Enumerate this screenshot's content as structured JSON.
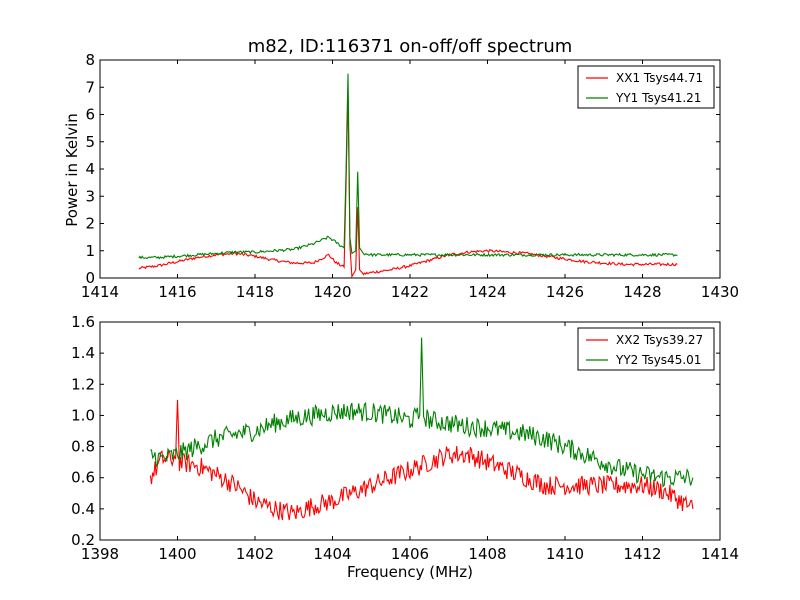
{
  "chart_data": [
    {
      "type": "line",
      "title": "m82, ID:116371 on-off/off spectrum",
      "xlabel": "",
      "ylabel": "Power in Kelvin",
      "xlim": [
        1414,
        1430
      ],
      "ylim": [
        0,
        8
      ],
      "xticks": [
        1414,
        1416,
        1418,
        1420,
        1422,
        1424,
        1426,
        1428,
        1430
      ],
      "yticks": [
        0,
        1,
        2,
        3,
        4,
        5,
        6,
        7,
        8
      ],
      "legend_position": "top-right",
      "series": [
        {
          "name": "XX1 Tsys44.71",
          "color": "#ff0000",
          "x": [
            1415.0,
            1415.5,
            1416.0,
            1416.5,
            1417.0,
            1417.5,
            1418.0,
            1418.5,
            1419.0,
            1419.5,
            1419.9,
            1420.1,
            1420.3,
            1420.35,
            1420.4,
            1420.45,
            1420.5,
            1420.6,
            1420.65,
            1420.7,
            1420.8,
            1421.0,
            1421.5,
            1422.0,
            1422.5,
            1423.0,
            1423.5,
            1424.0,
            1424.5,
            1425.0,
            1425.5,
            1426.0,
            1426.5,
            1427.0,
            1427.5,
            1428.0,
            1428.5,
            1428.9
          ],
          "y": [
            0.35,
            0.45,
            0.6,
            0.75,
            0.85,
            0.9,
            0.8,
            0.65,
            0.55,
            0.55,
            0.85,
            0.55,
            0.4,
            3.5,
            6.8,
            1.2,
            0.05,
            0.3,
            2.6,
            0.3,
            0.15,
            0.2,
            0.3,
            0.45,
            0.65,
            0.85,
            0.95,
            1.0,
            0.95,
            0.9,
            0.8,
            0.7,
            0.6,
            0.55,
            0.5,
            0.5,
            0.5,
            0.5
          ]
        },
        {
          "name": "YY1 Tsys41.21",
          "color": "#008000",
          "x": [
            1415.0,
            1415.5,
            1416.0,
            1416.5,
            1417.0,
            1417.5,
            1418.0,
            1418.5,
            1419.0,
            1419.5,
            1419.9,
            1420.1,
            1420.3,
            1420.35,
            1420.4,
            1420.45,
            1420.5,
            1420.6,
            1420.65,
            1420.7,
            1420.8,
            1421.0,
            1421.5,
            1422.0,
            1422.5,
            1423.0,
            1423.5,
            1424.0,
            1424.5,
            1425.0,
            1425.5,
            1426.0,
            1426.5,
            1427.0,
            1427.5,
            1428.0,
            1428.5,
            1428.9
          ],
          "y": [
            0.75,
            0.75,
            0.8,
            0.85,
            0.9,
            0.95,
            0.95,
            1.0,
            1.05,
            1.25,
            1.5,
            1.3,
            1.1,
            4.0,
            7.5,
            1.5,
            0.9,
            1.0,
            3.9,
            1.1,
            0.9,
            0.85,
            0.85,
            0.85,
            0.85,
            0.85,
            0.85,
            0.85,
            0.85,
            0.85,
            0.85,
            0.85,
            0.85,
            0.85,
            0.85,
            0.85,
            0.85,
            0.85
          ]
        }
      ]
    },
    {
      "type": "line",
      "title": "",
      "xlabel": "Frequency (MHz)",
      "ylabel": "",
      "xlim": [
        1398,
        1414
      ],
      "ylim": [
        0.2,
        1.6
      ],
      "xticks": [
        1398,
        1400,
        1402,
        1404,
        1406,
        1408,
        1410,
        1412,
        1414
      ],
      "yticks": [
        0.2,
        0.4,
        0.6,
        0.8,
        1.0,
        1.2,
        1.4,
        1.6
      ],
      "ytick_labels": [
        "0.2",
        "0.4",
        "0.6",
        "0.8",
        "1.0",
        "1.2",
        "1.4",
        "1.6"
      ],
      "legend_position": "top-right",
      "series": [
        {
          "name": "XX2 Tsys39.27",
          "color": "#ff0000",
          "x": [
            1399.3,
            1399.6,
            1399.95,
            1400.0,
            1400.05,
            1400.5,
            1401.0,
            1401.5,
            1402.0,
            1402.5,
            1403.0,
            1403.5,
            1404.0,
            1404.5,
            1405.0,
            1405.5,
            1406.0,
            1406.5,
            1407.0,
            1407.5,
            1408.0,
            1408.5,
            1409.0,
            1409.5,
            1410.0,
            1410.5,
            1411.0,
            1411.5,
            1412.0,
            1412.5,
            1413.0,
            1413.3
          ],
          "y": [
            0.6,
            0.72,
            0.72,
            1.1,
            0.7,
            0.68,
            0.62,
            0.55,
            0.45,
            0.4,
            0.37,
            0.42,
            0.45,
            0.5,
            0.55,
            0.6,
            0.65,
            0.7,
            0.75,
            0.75,
            0.7,
            0.65,
            0.6,
            0.55,
            0.55,
            0.55,
            0.55,
            0.55,
            0.55,
            0.52,
            0.45,
            0.4
          ]
        },
        {
          "name": "YY2 Tsys45.01",
          "color": "#008000",
          "x": [
            1399.3,
            1399.6,
            1400.0,
            1400.5,
            1401.0,
            1401.5,
            1402.0,
            1402.5,
            1403.0,
            1403.5,
            1404.0,
            1404.5,
            1405.0,
            1405.5,
            1406.0,
            1406.25,
            1406.3,
            1406.35,
            1406.5,
            1407.0,
            1407.5,
            1408.0,
            1408.5,
            1409.0,
            1409.5,
            1410.0,
            1410.5,
            1411.0,
            1411.5,
            1412.0,
            1412.5,
            1413.0,
            1413.3
          ],
          "y": [
            0.75,
            0.72,
            0.75,
            0.8,
            0.85,
            0.88,
            0.9,
            0.95,
            0.98,
            1.0,
            1.02,
            1.03,
            1.02,
            1.0,
            0.97,
            1.0,
            1.5,
            1.0,
            0.97,
            0.95,
            0.93,
            0.92,
            0.9,
            0.88,
            0.85,
            0.8,
            0.75,
            0.7,
            0.65,
            0.62,
            0.6,
            0.6,
            0.6
          ]
        }
      ]
    }
  ]
}
